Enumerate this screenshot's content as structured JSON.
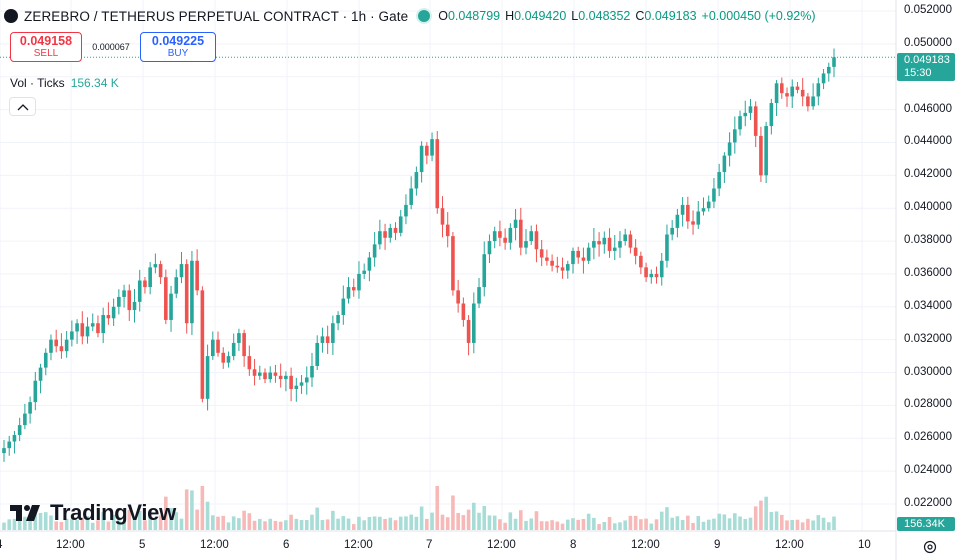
{
  "header": {
    "title": "ZEREBRO / TETHERUS PERPETUAL CONTRACT · 1h · Gate",
    "ohlc": [
      {
        "key": "O",
        "value": "0.048799"
      },
      {
        "key": "H",
        "value": "0.049420"
      },
      {
        "key": "L",
        "value": "0.048352"
      },
      {
        "key": "C",
        "value": "0.049183"
      }
    ],
    "change": "+0.000450 (+0.92%)"
  },
  "trade": {
    "sell_price": "0.049158",
    "sell_label": "SELL",
    "spread": "0.000067",
    "buy_price": "0.049225",
    "buy_label": "BUY"
  },
  "volume_legend": {
    "name": "Vol · Ticks",
    "value": "156.34 K"
  },
  "price_axis": {
    "labels": [
      "0.052000",
      "0.050000",
      "0.048000",
      "0.046000",
      "0.044000",
      "0.042000",
      "0.040000",
      "0.038000",
      "0.036000",
      "0.034000",
      "0.032000",
      "0.030000",
      "0.028000",
      "0.026000",
      "0.024000",
      "0.022000"
    ],
    "current_price": "0.049183",
    "countdown": "15:30",
    "volume_tag": "156.34K"
  },
  "time_axis": {
    "labels": [
      "4",
      "12:00",
      "5",
      "12:00",
      "6",
      "12:00",
      "7",
      "12:00",
      "8",
      "12:00",
      "9",
      "12:00",
      "10"
    ]
  },
  "branding": {
    "name": "TradingView"
  },
  "colors": {
    "up": "#26a69a",
    "down": "#ef5350",
    "grid": "#f0f3fa"
  },
  "chart_data": {
    "type": "candlestick",
    "interval": "1h",
    "ylim": [
      0.021,
      0.0525
    ],
    "candles_close": [
      0.0254,
      0.0258,
      0.0262,
      0.0268,
      0.0275,
      0.0282,
      0.0295,
      0.0303,
      0.0312,
      0.032,
      0.0316,
      0.0313,
      0.032,
      0.0325,
      0.033,
      0.0322,
      0.0328,
      0.033,
      0.0324,
      0.0335,
      0.0333,
      0.034,
      0.0346,
      0.035,
      0.0338,
      0.0343,
      0.0356,
      0.0352,
      0.0364,
      0.0366,
      0.0358,
      0.0332,
      0.0348,
      0.0358,
      0.0366,
      0.033,
      0.0368,
      0.035,
      0.0284,
      0.031,
      0.032,
      0.0312,
      0.0306,
      0.031,
      0.0318,
      0.0324,
      0.031,
      0.0302,
      0.0298,
      0.03,
      0.0296,
      0.03,
      0.0298,
      0.0296,
      0.0298,
      0.029,
      0.0292,
      0.0294,
      0.0297,
      0.0304,
      0.0318,
      0.0322,
      0.0318,
      0.033,
      0.0335,
      0.0345,
      0.0352,
      0.035,
      0.036,
      0.0362,
      0.037,
      0.0378,
      0.0386,
      0.0382,
      0.0388,
      0.0385,
      0.0395,
      0.0402,
      0.0412,
      0.0422,
      0.0438,
      0.0432,
      0.0442,
      0.04,
      0.039,
      0.0383,
      0.035,
      0.0342,
      0.0332,
      0.0318,
      0.0342,
      0.0352,
      0.0372,
      0.038,
      0.0386,
      0.0382,
      0.0379,
      0.0388,
      0.0393,
      0.0376,
      0.038,
      0.0386,
      0.0375,
      0.037,
      0.0368,
      0.0365,
      0.0364,
      0.0362,
      0.0366,
      0.0374,
      0.037,
      0.0368,
      0.0376,
      0.038,
      0.0378,
      0.0382,
      0.0374,
      0.0376,
      0.038,
      0.0384,
      0.0376,
      0.0371,
      0.0364,
      0.0358,
      0.036,
      0.0358,
      0.0368,
      0.0384,
      0.0388,
      0.0396,
      0.0402,
      0.0392,
      0.039,
      0.0398,
      0.04,
      0.0404,
      0.0412,
      0.0422,
      0.0432,
      0.044,
      0.0448,
      0.0456,
      0.0458,
      0.0462,
      0.0444,
      0.042,
      0.045,
      0.0464,
      0.0476,
      0.047,
      0.0468,
      0.0474,
      0.0472,
      0.0468,
      0.0462,
      0.0468,
      0.0476,
      0.0482,
      0.0486,
      0.049183
    ]
  }
}
